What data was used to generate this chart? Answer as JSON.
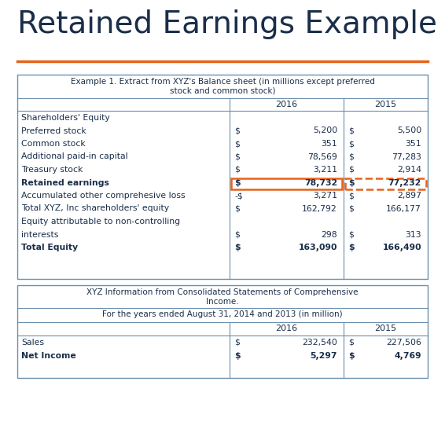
{
  "title": "Retained Earnings Example",
  "title_color": "#1a2e4a",
  "orange_line_color": "#e8621a",
  "table_border_color": "#6a8faf",
  "text_color": "#1a2e4a",
  "highlight_solid_color": "#e8621a",
  "highlight_dashed_color": "#e8621a",
  "background_color": "#ffffff",
  "table1_header_line1": "Example 1. Extract from XYZ's Balance sheet (in millions except preferred",
  "table1_header_line2": "stock and common stock)",
  "table1_rows": [
    [
      "Shareholders' Equity",
      "",
      "",
      "",
      ""
    ],
    [
      "Preferred stock",
      "$",
      "5,200",
      "$",
      "5,500"
    ],
    [
      "Common stock",
      "$",
      "351",
      "$",
      "351"
    ],
    [
      "Additional paid-in capital",
      "$",
      "78,569",
      "$",
      "77,283"
    ],
    [
      "Treasury stock",
      "$",
      "3,211",
      "$",
      "2,914"
    ],
    [
      "Retained earnings",
      "$",
      "78,732",
      "$",
      "77,232"
    ],
    [
      "Accumulated other comprehesive loss",
      "-$",
      "3,271",
      "$",
      "2,897"
    ],
    [
      "Total XYZ, Inc shareholders' equity",
      "$",
      "162,792",
      "$",
      "166,177"
    ],
    [
      "Equity attributable to non-controlling",
      "",
      "",
      "",
      ""
    ],
    [
      "interests",
      "$",
      "298",
      "$",
      "313"
    ],
    [
      "Total Equity",
      "$",
      "163,090",
      "$",
      "166,490"
    ]
  ],
  "table2_header1_line1": "XYZ Information from Consolidated Statements of Comprehensive",
  "table2_header1_line2": "Income.",
  "table2_header2": "For the years ended August 31, 2014 and 2013 (in million)",
  "table2_rows": [
    [
      "Sales",
      "$",
      "232,540",
      "$",
      "227,506"
    ],
    [
      "Net Income",
      "$",
      "5,297",
      "$",
      "4,769"
    ]
  ],
  "bold_rows_t1": [
    "Retained earnings",
    "Total Equity"
  ],
  "bold_rows_t2": [
    "Net Income"
  ]
}
